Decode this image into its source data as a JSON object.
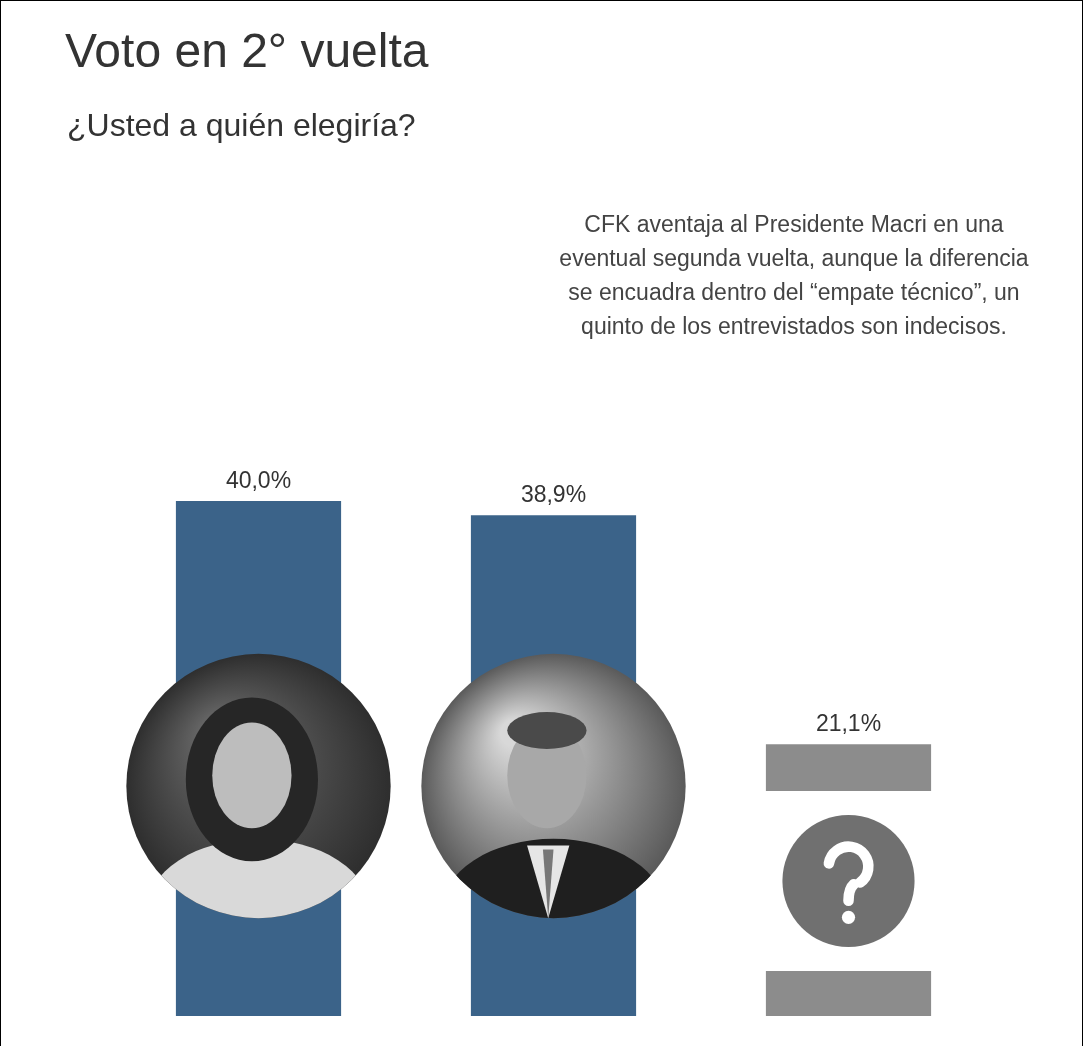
{
  "chart_data": {
    "type": "bar",
    "title": "Voto en 2° vuelta",
    "subtitle": "¿Usted a quién elegiría?",
    "annotation": "CFK aventaja al Presidente Macri en una eventual segunda vuelta, aunque la diferencia se encuadra dentro del “empate técnico”, un quinto de los entrevistados son indecisos.",
    "categories": [
      null,
      null,
      null
    ],
    "values": [
      40.0,
      38.9,
      21.1
    ],
    "value_labels": [
      "40,0%",
      "38,9%",
      "21,1%"
    ],
    "colors": [
      "#3b6389",
      "#3b6389",
      "#8c8c8c"
    ],
    "ylim": [
      0,
      40
    ],
    "grid": false,
    "tick_labels": false,
    "data_labels": true
  }
}
